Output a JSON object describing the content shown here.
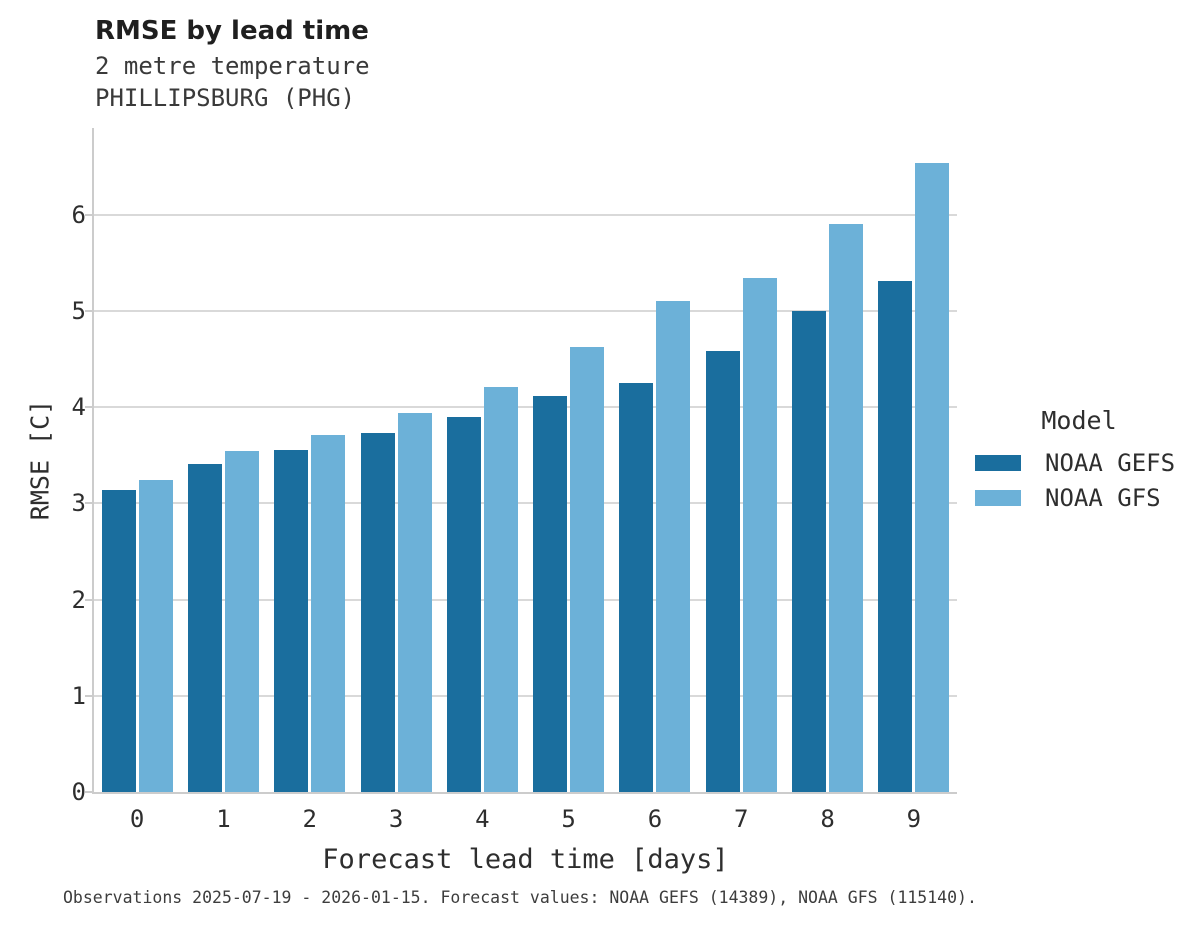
{
  "header": {
    "title": "RMSE by lead time",
    "subtitle": [
      "2 metre temperature",
      "PHILLIPSBURG (PHG)"
    ]
  },
  "chart_data": {
    "type": "bar",
    "title": "RMSE by lead time",
    "subtitle": [
      "2 metre temperature",
      "PHILLIPSBURG (PHG)"
    ],
    "categories": [
      "0",
      "1",
      "2",
      "3",
      "4",
      "5",
      "6",
      "7",
      "8",
      "9"
    ],
    "series": [
      {
        "name": "NOAA GEFS",
        "color": "#1a6e9e",
        "values": [
          3.14,
          3.41,
          3.55,
          3.73,
          3.9,
          4.11,
          4.25,
          4.58,
          5.0,
          5.31
        ]
      },
      {
        "name": "NOAA GFS",
        "color": "#6cb1d8",
        "values": [
          3.24,
          3.54,
          3.71,
          3.94,
          4.21,
          4.62,
          5.1,
          5.34,
          5.9,
          6.54
        ]
      }
    ],
    "xlabel": "Forecast lead time [days]",
    "ylabel": "RMSE [C]",
    "ylim": [
      0,
      6.9
    ],
    "yticks": [
      0,
      1,
      2,
      3,
      4,
      5,
      6
    ],
    "grid": true,
    "legend_title": "Model",
    "legend_position": "right"
  },
  "footer": {
    "caption": "Observations 2025-07-19 - 2026-01-15. Forecast values: NOAA GEFS (14389), NOAA GFS (115140)."
  },
  "colors": {
    "gefs": "#1a6e9e",
    "gfs": "#6cb1d8",
    "gridline": "#d9d9d9",
    "spine": "#cccccc"
  }
}
